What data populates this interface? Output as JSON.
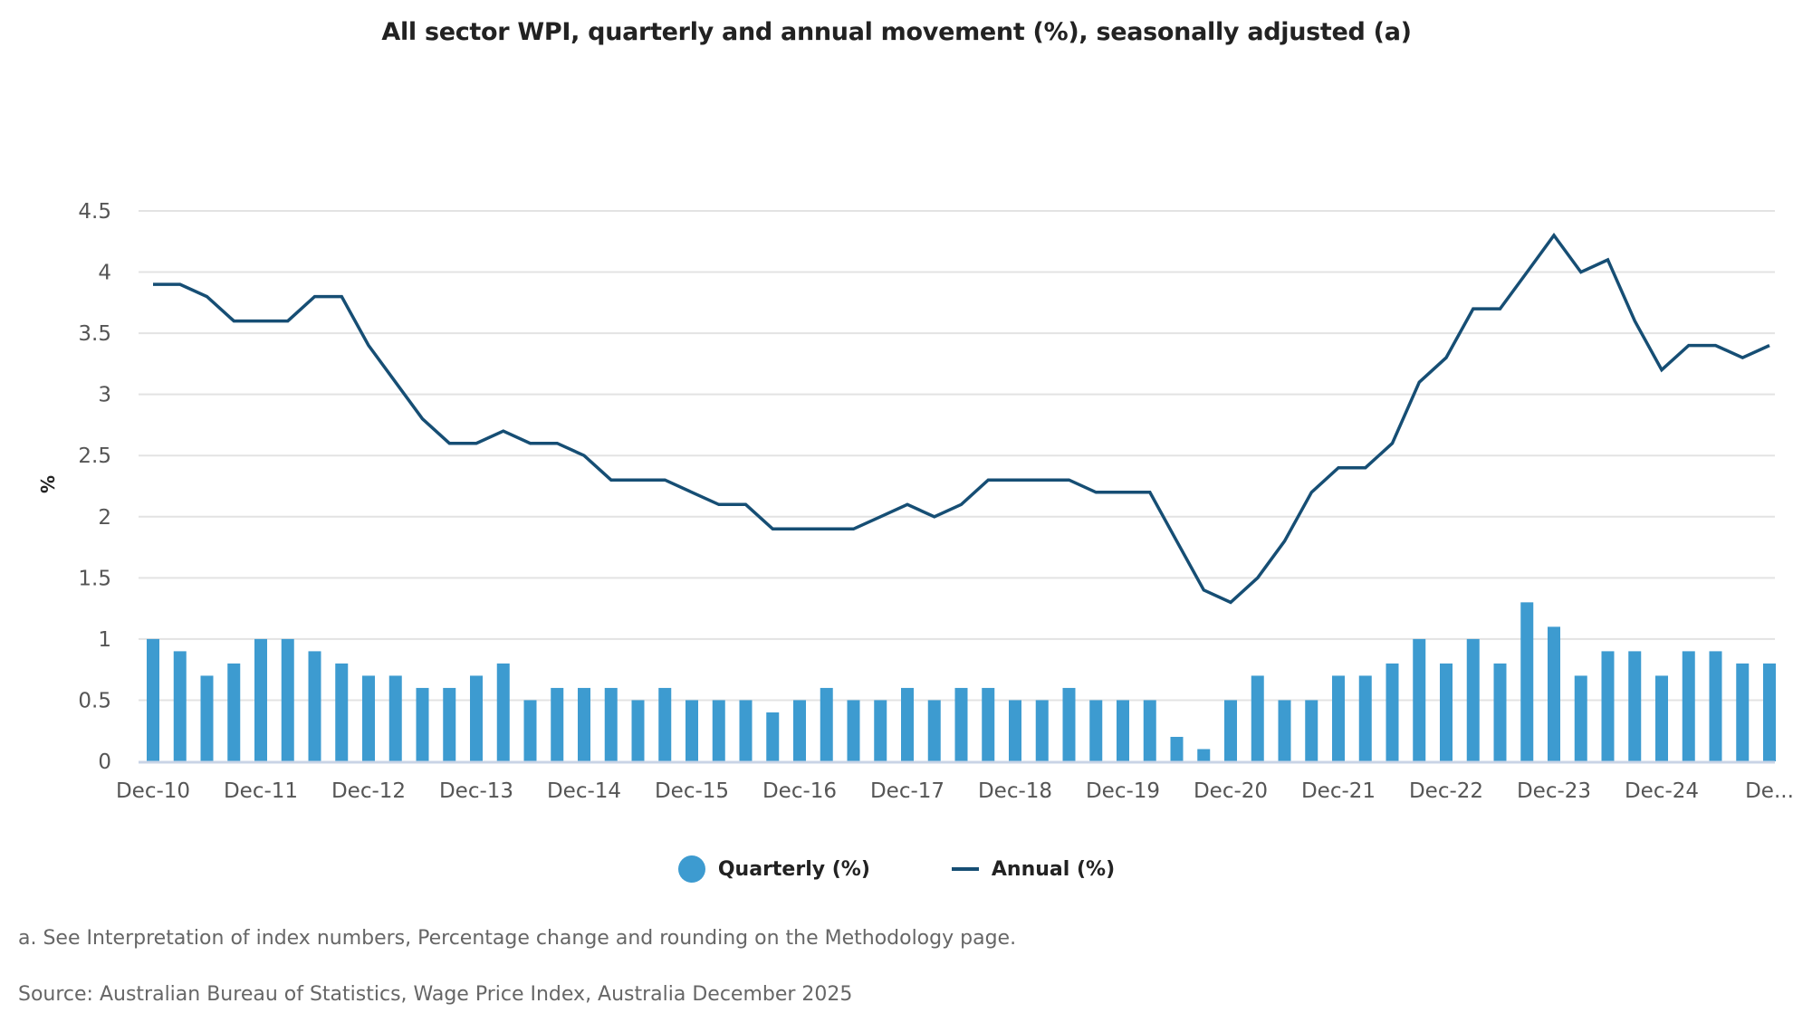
{
  "chart_data": {
    "type": "bar+line",
    "title": "All sector WPI, quarterly and annual movement (%), seasonally adjusted (a)",
    "xlabel": "",
    "ylabel": "%",
    "ylim": [
      0,
      4.5
    ],
    "yticks": [
      "0",
      "0.5",
      "1",
      "1.5",
      "2",
      "2.5",
      "3",
      "3.5",
      "4",
      "4.5"
    ],
    "ytick_values": [
      0,
      0.5,
      1,
      1.5,
      2,
      2.5,
      3,
      3.5,
      4,
      4.5
    ],
    "grid": true,
    "legend_position": "bottom-center",
    "x_tick_labels": [
      "Dec-10",
      "Dec-11",
      "Dec-12",
      "Dec-13",
      "Dec-14",
      "Dec-15",
      "Dec-16",
      "Dec-17",
      "Dec-18",
      "Dec-19",
      "Dec-20",
      "Dec-21",
      "Dec-22",
      "Dec-23",
      "Dec-24",
      "De..."
    ],
    "x_tick_every": 4,
    "categories": [
      "Dec-10",
      "Mar-11",
      "Jun-11",
      "Sep-11",
      "Dec-11",
      "Mar-12",
      "Jun-12",
      "Sep-12",
      "Dec-12",
      "Mar-13",
      "Jun-13",
      "Sep-13",
      "Dec-13",
      "Mar-14",
      "Jun-14",
      "Sep-14",
      "Dec-14",
      "Mar-15",
      "Jun-15",
      "Sep-15",
      "Dec-15",
      "Mar-16",
      "Jun-16",
      "Sep-16",
      "Dec-16",
      "Mar-17",
      "Jun-17",
      "Sep-17",
      "Dec-17",
      "Mar-18",
      "Jun-18",
      "Sep-18",
      "Dec-18",
      "Mar-19",
      "Jun-19",
      "Sep-19",
      "Dec-19",
      "Mar-20",
      "Jun-20",
      "Sep-20",
      "Dec-20",
      "Mar-21",
      "Jun-21",
      "Sep-21",
      "Dec-21",
      "Mar-22",
      "Jun-22",
      "Sep-22",
      "Dec-22",
      "Mar-23",
      "Jun-23",
      "Sep-23",
      "Dec-23",
      "Mar-24",
      "Jun-24",
      "Sep-24",
      "Dec-24",
      "Mar-25",
      "Jun-25",
      "Sep-25",
      "Dec-25"
    ],
    "series": [
      {
        "name": "Quarterly (%)",
        "type": "bar",
        "color": "#3d9bd0",
        "values": [
          1.0,
          0.9,
          0.7,
          0.8,
          1.0,
          1.0,
          0.9,
          0.8,
          0.7,
          0.7,
          0.6,
          0.6,
          0.7,
          0.8,
          0.5,
          0.6,
          0.6,
          0.6,
          0.5,
          0.6,
          0.5,
          0.5,
          0.5,
          0.4,
          0.5,
          0.6,
          0.5,
          0.5,
          0.6,
          0.5,
          0.6,
          0.6,
          0.5,
          0.5,
          0.6,
          0.5,
          0.5,
          0.5,
          0.2,
          0.1,
          0.5,
          0.7,
          0.5,
          0.5,
          0.7,
          0.7,
          0.8,
          1.0,
          0.8,
          1.0,
          0.8,
          1.3,
          1.1,
          0.7,
          0.9,
          0.9,
          0.7,
          0.9,
          0.9,
          0.8,
          0.8
        ]
      },
      {
        "name": "Annual (%)",
        "type": "line",
        "color": "#164e74",
        "values": [
          3.9,
          3.9,
          3.8,
          3.6,
          3.6,
          3.6,
          3.8,
          3.8,
          3.4,
          3.1,
          2.8,
          2.6,
          2.6,
          2.7,
          2.6,
          2.6,
          2.5,
          2.3,
          2.3,
          2.3,
          2.2,
          2.1,
          2.1,
          1.9,
          1.9,
          1.9,
          1.9,
          2.0,
          2.1,
          2.0,
          2.1,
          2.3,
          2.3,
          2.3,
          2.3,
          2.2,
          2.2,
          2.2,
          1.8,
          1.4,
          1.3,
          1.5,
          1.8,
          2.2,
          2.4,
          2.4,
          2.6,
          3.1,
          3.3,
          3.7,
          3.7,
          4.0,
          4.3,
          4.0,
          4.1,
          3.6,
          3.2,
          3.4,
          3.4,
          3.3,
          3.4
        ]
      }
    ]
  },
  "legend": [
    {
      "label": "Quarterly (%)",
      "marker": "circle",
      "color": "#3d9bd0"
    },
    {
      "label": "Annual (%)",
      "marker": "line",
      "color": "#164e74"
    }
  ],
  "footnotes": {
    "note_a": "a. See Interpretation of index numbers, Percentage change and rounding on the Methodology page.",
    "source": "Source: Australian Bureau of Statistics, Wage Price Index, Australia December 2025"
  }
}
